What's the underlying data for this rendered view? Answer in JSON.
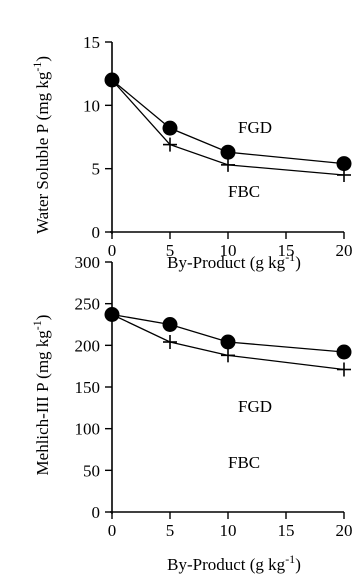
{
  "chart_data": [
    {
      "type": "line",
      "ylabel": "Water Soluble P (mg kg",
      "ylabel_sup": "-1",
      "ylabel_close": ")",
      "xlabel": "By-Product (g kg",
      "xlabel_sup": "-1",
      "xlabel_close": ")",
      "x_ticks": [
        "0",
        "5",
        "10",
        "15",
        "20"
      ],
      "y_ticks": [
        "0",
        "5",
        "10",
        "15"
      ],
      "xlim": [
        0,
        20
      ],
      "ylim": [
        0,
        15
      ],
      "grid": false,
      "series": [
        {
          "name": "FGD",
          "marker": "circle",
          "x": [
            0,
            5,
            10,
            20
          ],
          "y": [
            12.0,
            8.2,
            6.3,
            5.4
          ]
        },
        {
          "name": "FBC",
          "marker": "plus",
          "x": [
            0,
            5,
            10,
            20
          ],
          "y": [
            12.0,
            6.9,
            5.3,
            4.5
          ]
        }
      ]
    },
    {
      "type": "line",
      "ylabel": "Mehlich-III P (mg kg",
      "ylabel_sup": "-1",
      "ylabel_close": ")",
      "xlabel": "By-Product (g kg",
      "xlabel_sup": "-1",
      "xlabel_close": ")",
      "x_ticks": [
        "0",
        "5",
        "10",
        "15",
        "20"
      ],
      "y_ticks": [
        "0",
        "50",
        "100",
        "150",
        "200",
        "250",
        "300"
      ],
      "xlim": [
        0,
        20
      ],
      "ylim": [
        0,
        300
      ],
      "grid": false,
      "series": [
        {
          "name": "FGD",
          "marker": "circle",
          "x": [
            0,
            5,
            10,
            20
          ],
          "y": [
            237,
            225,
            204,
            192
          ]
        },
        {
          "name": "FBC",
          "marker": "plus",
          "x": [
            0,
            5,
            10,
            20
          ],
          "y": [
            237,
            204,
            188,
            171
          ]
        }
      ]
    }
  ]
}
